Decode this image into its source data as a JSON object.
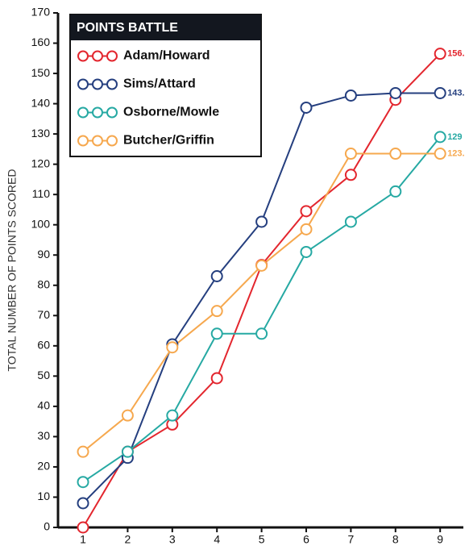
{
  "chart_data": {
    "type": "line",
    "legend_title": "POINTS BATTLE",
    "ylabel": "TOTAL NUMBER OF POINTS SCORED",
    "x": [
      1,
      2,
      3,
      4,
      5,
      6,
      7,
      8,
      9
    ],
    "xlim": [
      0.44,
      9.52
    ],
    "xticks": [
      1,
      2,
      3,
      4,
      5,
      6,
      7,
      8,
      9
    ],
    "ylim": [
      0,
      170
    ],
    "yticks": [
      0,
      10,
      20,
      30,
      40,
      50,
      60,
      70,
      80,
      90,
      100,
      110,
      120,
      130,
      140,
      150,
      160,
      170
    ],
    "grid": false,
    "legend": "upper left",
    "series": [
      {
        "name": "Adam/Howard",
        "color": "#e3262e",
        "values": [
          0,
          25,
          34,
          49.3,
          86.7,
          104.5,
          116.5,
          141.3,
          156.5
        ],
        "value_labels": [
          null,
          null,
          null,
          null,
          null,
          null,
          null,
          null,
          "156."
        ]
      },
      {
        "name": "Sims/Attard",
        "color": "#253f7f",
        "values": [
          8,
          23,
          60.5,
          83,
          101,
          138.7,
          142.7,
          143.5,
          143.5
        ],
        "value_labels": [
          null,
          null,
          null,
          null,
          null,
          null,
          null,
          null,
          "143."
        ]
      },
      {
        "name": "Osborne/Mowle",
        "color": "#26a9a3",
        "values": [
          15,
          25,
          37,
          64,
          64,
          91,
          101,
          111,
          129
        ],
        "value_labels": [
          null,
          null,
          null,
          null,
          null,
          null,
          null,
          null,
          "129"
        ]
      },
      {
        "name": "Butcher/Griffin",
        "color": "#f6a84e",
        "values": [
          25,
          37,
          59.5,
          71.5,
          86.5,
          98.5,
          123.5,
          123.5,
          123.5
        ],
        "value_labels": [
          null,
          null,
          null,
          null,
          null,
          null,
          null,
          null,
          "123."
        ]
      }
    ]
  }
}
